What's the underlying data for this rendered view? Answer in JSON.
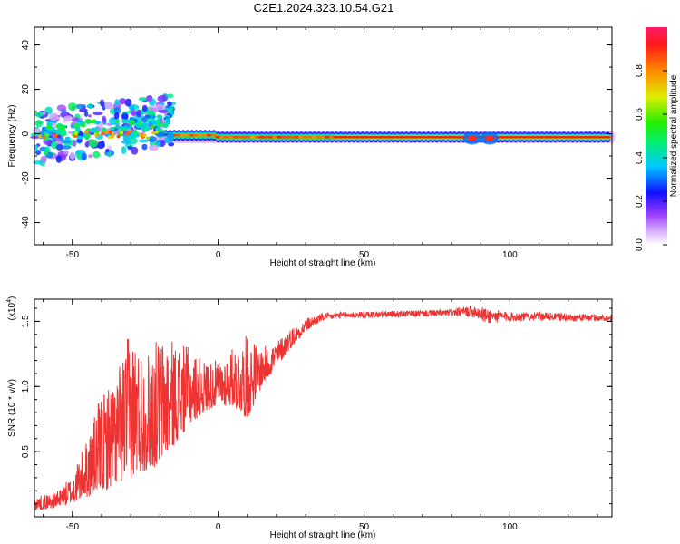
{
  "title": "C2E1.2024.323.10.54.G21",
  "chart_data": [
    {
      "type": "heatmap",
      "xlabel": "Height of straight line (km)",
      "ylabel": "Frequency (Hz)",
      "xlim": [
        -63,
        135
      ],
      "ylim": [
        -50,
        48
      ],
      "xticks": [
        "-50",
        "0",
        "50",
        "100"
      ],
      "yticks": [
        "40",
        "20",
        "0",
        "-20",
        "-40"
      ],
      "colorbar": {
        "label": "Normalized spectral amplitude",
        "range": [
          0,
          1
        ],
        "ticks": [
          "0.0",
          "0.2",
          "0.4",
          "0.6",
          "0.8"
        ]
      }
    },
    {
      "type": "line",
      "xlabel": "Height of straight line (km)",
      "ylabel": "SNR (10 * v/v)",
      "exponent_label": "(x10",
      "exponent_power": "4",
      "xlim": [
        -63,
        135
      ],
      "ylim": [
        0,
        1.67
      ],
      "xticks": [
        "-50",
        "0",
        "50",
        "100"
      ],
      "yticks": [
        "1.5",
        "1.0",
        "0.5"
      ],
      "color": "#ee3333",
      "envelope": [
        [
          -63,
          0.05,
          0.15
        ],
        [
          -55,
          0.07,
          0.2
        ],
        [
          -50,
          0.1,
          0.32
        ],
        [
          -45,
          0.15,
          0.6
        ],
        [
          -40,
          0.18,
          0.95
        ],
        [
          -35,
          0.25,
          1.1
        ],
        [
          -30,
          0.3,
          1.45
        ],
        [
          -25,
          0.35,
          1.25
        ],
        [
          -20,
          0.4,
          1.4
        ],
        [
          -15,
          0.55,
          1.35
        ],
        [
          -10,
          0.7,
          1.3
        ],
        [
          -5,
          0.8,
          1.2
        ],
        [
          0,
          0.85,
          1.2
        ],
        [
          5,
          0.85,
          1.3
        ],
        [
          10,
          0.75,
          1.4
        ],
        [
          15,
          1.0,
          1.3
        ],
        [
          20,
          1.15,
          1.35
        ],
        [
          25,
          1.3,
          1.45
        ],
        [
          30,
          1.42,
          1.52
        ],
        [
          35,
          1.5,
          1.56
        ],
        [
          40,
          1.52,
          1.57
        ],
        [
          60,
          1.53,
          1.58
        ],
        [
          80,
          1.54,
          1.59
        ],
        [
          88,
          1.53,
          1.63
        ],
        [
          92,
          1.48,
          1.6
        ],
        [
          100,
          1.5,
          1.57
        ],
        [
          110,
          1.51,
          1.57
        ],
        [
          120,
          1.5,
          1.56
        ],
        [
          135,
          1.5,
          1.55
        ]
      ]
    }
  ]
}
